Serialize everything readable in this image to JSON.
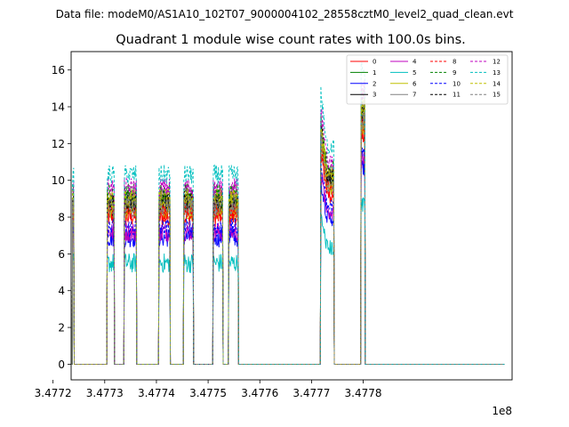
{
  "chart_data": {
    "type": "line",
    "suptitle": "Data file: modeM0/AS1A10_102T07_9000004102_28558cztM0_level2_quad_clean.evt",
    "title": "Quadrant 1 module wise count rates with 100.0s bins.",
    "xlabel": "",
    "ylabel": "",
    "x_offset_label": "1e8",
    "xlim": [
      347723500,
      347808800
    ],
    "ylim": [
      -0.85,
      17
    ],
    "x_ticks": [
      347720000,
      347730000,
      347740000,
      347750000,
      347760000,
      347770000,
      347780000
    ],
    "x_tick_labels": [
      "3.4772",
      "3.4773",
      "3.4774",
      "3.4775",
      "3.4776",
      "3.4777",
      "3.4778"
    ],
    "y_ticks": [
      0,
      2,
      4,
      6,
      8,
      10,
      12,
      14,
      16
    ],
    "y_tick_labels": [
      "0",
      "2",
      "4",
      "6",
      "8",
      "10",
      "12",
      "14",
      "16"
    ],
    "bin_seconds": 100,
    "legend_position": "top-right",
    "legend_columns": 4,
    "active_segments": [
      [
        347723800,
        347724000
      ],
      [
        347730500,
        347731800
      ],
      [
        347733800,
        347736100
      ],
      [
        347740500,
        347742600
      ],
      [
        347745300,
        347747100
      ],
      [
        347751000,
        347752800
      ],
      [
        347754000,
        347755800
      ],
      [
        347771800,
        347774300
      ],
      [
        347779600,
        347780300
      ]
    ],
    "series": [
      {
        "name": "0",
        "color": "#ff0000",
        "dash": "solid",
        "level": 8.0
      },
      {
        "name": "1",
        "color": "#008000",
        "dash": "solid",
        "level": 8.8
      },
      {
        "name": "2",
        "color": "#0000ff",
        "dash": "solid",
        "level": 6.9
      },
      {
        "name": "3",
        "color": "#000000",
        "dash": "solid",
        "level": 8.6
      },
      {
        "name": "4",
        "color": "#bf00bf",
        "dash": "solid",
        "level": 7.2
      },
      {
        "name": "5",
        "color": "#00bfbf",
        "dash": "solid",
        "level": 5.5
      },
      {
        "name": "6",
        "color": "#bfbf00",
        "dash": "solid",
        "level": 8.4
      },
      {
        "name": "7",
        "color": "#808080",
        "dash": "solid",
        "level": 9.0
      },
      {
        "name": "8",
        "color": "#ff0000",
        "dash": "dashed",
        "level": 8.3
      },
      {
        "name": "9",
        "color": "#008000",
        "dash": "dashed",
        "level": 9.3
      },
      {
        "name": "10",
        "color": "#0000ff",
        "dash": "dashed",
        "level": 7.4
      },
      {
        "name": "11",
        "color": "#000000",
        "dash": "dashed",
        "level": 8.9
      },
      {
        "name": "12",
        "color": "#bf00bf",
        "dash": "dashed",
        "level": 9.6
      },
      {
        "name": "13",
        "color": "#00bfbf",
        "dash": "dashed",
        "level": 10.3
      },
      {
        "name": "14",
        "color": "#bfbf00",
        "dash": "dashed",
        "level": 9.0
      },
      {
        "name": "15",
        "color": "#808080",
        "dash": "dashed",
        "level": 8.5
      }
    ]
  }
}
